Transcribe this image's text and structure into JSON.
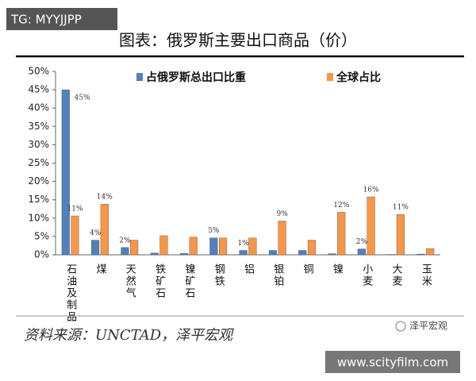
{
  "badge": "TG: MYYJJPP",
  "chart_data": {
    "type": "bar",
    "title": "图表：俄罗斯主要出口商品（价）",
    "categories": [
      "石油及制品",
      "煤",
      "天然气",
      "铁矿石",
      "镍矿石",
      "钢铁",
      "铝",
      "银铂",
      "铜",
      "镍",
      "小麦",
      "大麦",
      "玉米"
    ],
    "series": [
      {
        "name": "占俄罗斯总出口比重",
        "color": "#4f81bd",
        "values": [
          45,
          4,
          2,
          0.5,
          0.4,
          4.6,
          1.2,
          1.2,
          1.2,
          0.3,
          1.6,
          0.1,
          0.2
        ],
        "value_labels": [
          "45%",
          "4%",
          "2%",
          null,
          null,
          "5%",
          "1%",
          null,
          null,
          null,
          "2%",
          null,
          null
        ]
      },
      {
        "name": "全球占比",
        "color": "#f79646",
        "values": [
          10.6,
          13.8,
          4,
          5.2,
          4.8,
          4.6,
          4.6,
          9.2,
          4,
          11.6,
          15.8,
          11,
          1.7
        ],
        "value_labels": [
          "11%",
          "14%",
          null,
          null,
          null,
          null,
          null,
          "9%",
          null,
          "12%",
          "16%",
          "11%",
          null
        ]
      }
    ],
    "ylim": [
      0,
      50
    ],
    "yticks": [
      {
        "value": 0,
        "label": "0%"
      },
      {
        "value": 5,
        "label": "5%"
      },
      {
        "value": 10,
        "label": "10%"
      },
      {
        "value": 15,
        "label": "15%"
      },
      {
        "value": 20,
        "label": "20%"
      },
      {
        "value": 25,
        "label": "25%"
      },
      {
        "value": 30,
        "label": "30%"
      },
      {
        "value": 35,
        "label": "35%"
      },
      {
        "value": 40,
        "label": "40%"
      },
      {
        "value": 45,
        "label": "45%"
      },
      {
        "value": 50,
        "label": "50%"
      }
    ],
    "legend": "top"
  },
  "source": "资料来源：UNCTAD，泽平宏观",
  "watermark": "泽平宏观",
  "site": "www.scityfilm.com"
}
